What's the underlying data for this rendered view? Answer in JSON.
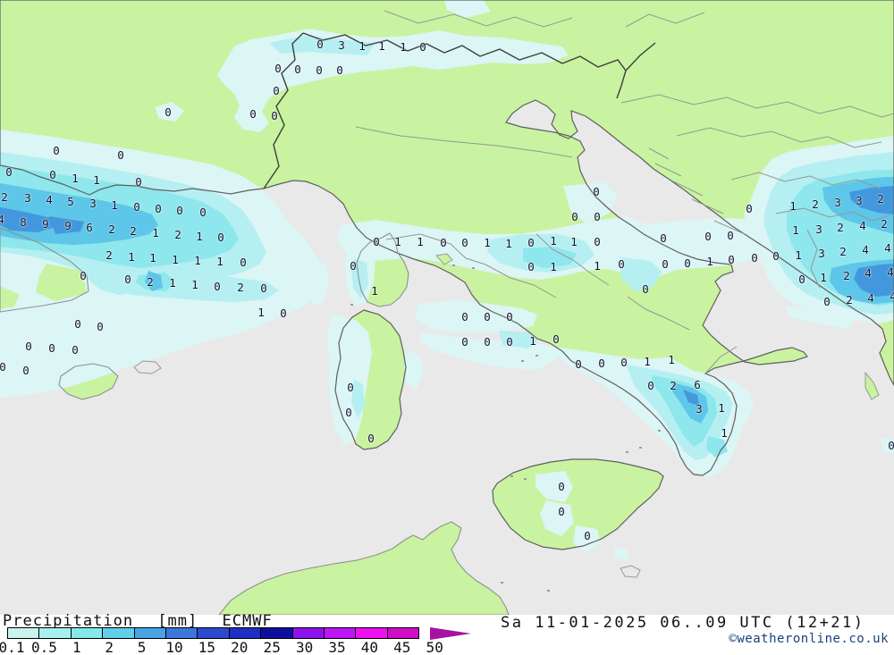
{
  "legend": {
    "title_text": "Precipitation",
    "title_unit": "[mm]",
    "title_model": "ECMWF",
    "labels": [
      "0.1",
      "0.5",
      "1",
      "2",
      "5",
      "10",
      "15",
      "20",
      "25",
      "30",
      "35",
      "40",
      "45",
      "50"
    ],
    "colors": [
      "#c9f3ec",
      "#a8f0f0",
      "#86e9e9",
      "#60cfea",
      "#4aa3e4",
      "#3b77dc",
      "#2c4ad0",
      "#1f2fc4",
      "#0e0f9e",
      "#8e12ee",
      "#bd15f5",
      "#ee10f0",
      "#cf0cc8"
    ],
    "arrow_color": "#a812a0"
  },
  "footer": {
    "datetime": "Sa 11-01-2025 06..09 UTC (12+21)",
    "copyright": "©weatheronline.co.uk"
  },
  "map_colors": {
    "sea": "#e9e9e9",
    "land": "#c9f3a0",
    "tier_01": "#dcf5f5",
    "tier_05": "#b5eff1",
    "tier_1": "#8de7ec",
    "tier_2": "#5ec6e8",
    "tier_5": "#4398dd"
  },
  "map": {
    "values": [
      [
        358,
        50,
        "0"
      ],
      [
        382,
        51,
        "3"
      ],
      [
        405,
        52,
        "1"
      ],
      [
        427,
        52,
        "1"
      ],
      [
        451,
        53,
        "1"
      ],
      [
        473,
        53,
        "0"
      ],
      [
        311,
        77,
        "0"
      ],
      [
        333,
        78,
        "0"
      ],
      [
        357,
        79,
        "0"
      ],
      [
        380,
        79,
        "0"
      ],
      [
        309,
        102,
        "0"
      ],
      [
        283,
        128,
        "0"
      ],
      [
        307,
        130,
        "0"
      ],
      [
        188,
        126,
        "0"
      ],
      [
        63,
        169,
        "0"
      ],
      [
        135,
        174,
        "0"
      ],
      [
        10,
        193,
        "0"
      ],
      [
        59,
        196,
        "0"
      ],
      [
        84,
        200,
        "1"
      ],
      [
        108,
        202,
        "1"
      ],
      [
        155,
        204,
        "0"
      ],
      [
        5,
        221,
        "2"
      ],
      [
        31,
        222,
        "3"
      ],
      [
        55,
        224,
        "4"
      ],
      [
        79,
        226,
        "5"
      ],
      [
        104,
        228,
        "3"
      ],
      [
        128,
        230,
        "1"
      ],
      [
        153,
        232,
        "0"
      ],
      [
        177,
        234,
        "0"
      ],
      [
        201,
        236,
        "0"
      ],
      [
        227,
        238,
        "0"
      ],
      [
        1,
        246,
        "4"
      ],
      [
        26,
        249,
        "8"
      ],
      [
        51,
        251,
        "9"
      ],
      [
        76,
        253,
        "9"
      ],
      [
        100,
        255,
        "6"
      ],
      [
        125,
        257,
        "2"
      ],
      [
        149,
        259,
        "2"
      ],
      [
        174,
        261,
        "1"
      ],
      [
        199,
        263,
        "2"
      ],
      [
        223,
        265,
        "1"
      ],
      [
        247,
        266,
        "0"
      ],
      [
        122,
        286,
        "2"
      ],
      [
        147,
        288,
        "1"
      ],
      [
        171,
        289,
        "1"
      ],
      [
        196,
        291,
        "1"
      ],
      [
        221,
        292,
        "1"
      ],
      [
        246,
        293,
        "1"
      ],
      [
        272,
        294,
        "0"
      ],
      [
        93,
        309,
        "0"
      ],
      [
        143,
        313,
        "0"
      ],
      [
        168,
        316,
        "2"
      ],
      [
        193,
        317,
        "1"
      ],
      [
        218,
        319,
        "1"
      ],
      [
        243,
        321,
        "0"
      ],
      [
        269,
        322,
        "2"
      ],
      [
        295,
        323,
        "0"
      ],
      [
        292,
        350,
        "1"
      ],
      [
        317,
        351,
        "0"
      ],
      [
        87,
        363,
        "0"
      ],
      [
        112,
        366,
        "0"
      ],
      [
        32,
        388,
        "0"
      ],
      [
        58,
        390,
        "0"
      ],
      [
        84,
        392,
        "0"
      ],
      [
        3,
        411,
        "0"
      ],
      [
        29,
        415,
        "0"
      ],
      [
        421,
        271,
        "0"
      ],
      [
        445,
        271,
        "1"
      ],
      [
        470,
        271,
        "1"
      ],
      [
        496,
        272,
        "0"
      ],
      [
        520,
        272,
        "0"
      ],
      [
        545,
        272,
        "1"
      ],
      [
        569,
        273,
        "1"
      ],
      [
        594,
        272,
        "0"
      ],
      [
        619,
        270,
        "1"
      ],
      [
        642,
        271,
        "1"
      ],
      [
        668,
        271,
        "0"
      ],
      [
        395,
        298,
        "0"
      ],
      [
        594,
        299,
        "0"
      ],
      [
        619,
        299,
        "1"
      ],
      [
        668,
        298,
        "1"
      ],
      [
        695,
        296,
        "0"
      ],
      [
        419,
        326,
        "1"
      ],
      [
        667,
        215,
        "0"
      ],
      [
        643,
        243,
        "0"
      ],
      [
        668,
        243,
        "0"
      ],
      [
        838,
        234,
        "0"
      ],
      [
        742,
        267,
        "0"
      ],
      [
        792,
        265,
        "0"
      ],
      [
        817,
        264,
        "0"
      ],
      [
        744,
        296,
        "0"
      ],
      [
        769,
        295,
        "0"
      ],
      [
        794,
        293,
        "1"
      ],
      [
        818,
        291,
        "0"
      ],
      [
        844,
        289,
        "0"
      ],
      [
        868,
        287,
        "0"
      ],
      [
        722,
        324,
        "0"
      ],
      [
        887,
        231,
        "1"
      ],
      [
        912,
        229,
        "2"
      ],
      [
        937,
        227,
        "3"
      ],
      [
        961,
        225,
        "3"
      ],
      [
        985,
        223,
        "2"
      ],
      [
        890,
        258,
        "1"
      ],
      [
        916,
        257,
        "3"
      ],
      [
        940,
        255,
        "2"
      ],
      [
        965,
        253,
        "4"
      ],
      [
        989,
        251,
        "2"
      ],
      [
        893,
        286,
        "1"
      ],
      [
        919,
        284,
        "3"
      ],
      [
        943,
        282,
        "2"
      ],
      [
        968,
        280,
        "4"
      ],
      [
        993,
        278,
        "4"
      ],
      [
        897,
        313,
        "0"
      ],
      [
        921,
        311,
        "1"
      ],
      [
        947,
        309,
        "2"
      ],
      [
        971,
        306,
        "4"
      ],
      [
        996,
        305,
        "4"
      ],
      [
        925,
        338,
        "0"
      ],
      [
        950,
        336,
        "2"
      ],
      [
        974,
        334,
        "4"
      ],
      [
        999,
        332,
        "4"
      ],
      [
        520,
        355,
        "0"
      ],
      [
        545,
        355,
        "0"
      ],
      [
        570,
        355,
        "0"
      ],
      [
        520,
        383,
        "0"
      ],
      [
        545,
        383,
        "0"
      ],
      [
        570,
        383,
        "0"
      ],
      [
        596,
        382,
        "1"
      ],
      [
        622,
        380,
        "0"
      ],
      [
        647,
        408,
        "0"
      ],
      [
        673,
        407,
        "0"
      ],
      [
        698,
        406,
        "0"
      ],
      [
        724,
        405,
        "1"
      ],
      [
        751,
        403,
        "1"
      ],
      [
        728,
        432,
        "0"
      ],
      [
        753,
        432,
        "2"
      ],
      [
        780,
        431,
        "6"
      ],
      [
        782,
        458,
        "3"
      ],
      [
        807,
        457,
        "1"
      ],
      [
        810,
        485,
        "1"
      ],
      [
        997,
        499,
        "0"
      ],
      [
        392,
        434,
        "0"
      ],
      [
        390,
        462,
        "0"
      ],
      [
        415,
        491,
        "0"
      ],
      [
        628,
        545,
        "0"
      ],
      [
        628,
        573,
        "0"
      ],
      [
        657,
        600,
        "0"
      ]
    ]
  }
}
